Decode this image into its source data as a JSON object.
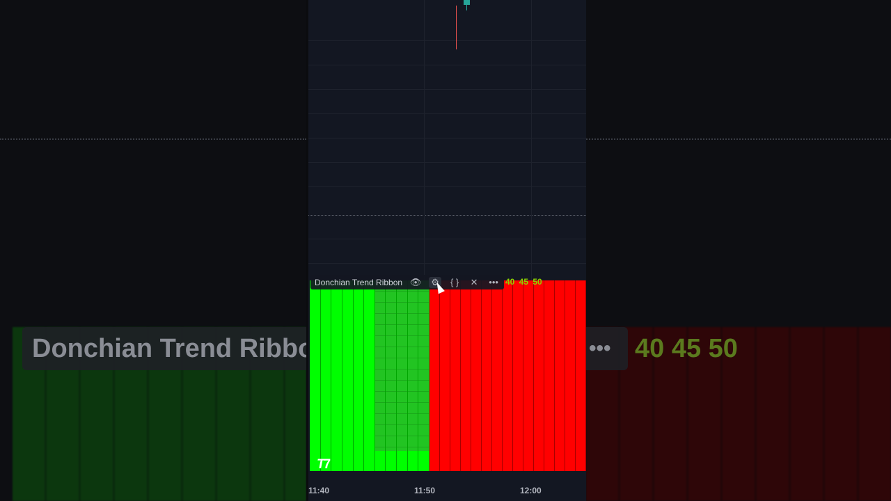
{
  "indicator": {
    "title": "Donchian Trend Ribbon",
    "icons": [
      "eye-icon",
      "gear-icon",
      "braces-icon",
      "close-icon",
      "more-icon"
    ],
    "values": "40 45 50"
  },
  "time_axis": {
    "ticks": [
      "11:40",
      "11:50",
      "12:00"
    ]
  },
  "logo_text": "TV",
  "ribbon": {
    "bullish_color": "#00ff00",
    "bullish_weak_color": "#22c422",
    "bearish_color": "#ff0000",
    "columns": [
      "up",
      "up",
      "up",
      "up",
      "up",
      "up",
      "up-weak",
      "up-weak",
      "up-weak",
      "up-weak",
      "up-weak",
      "down",
      "down",
      "down",
      "down",
      "down",
      "down",
      "down",
      "down",
      "down",
      "down",
      "down",
      "down",
      "down",
      "down",
      "down"
    ]
  },
  "candle": {
    "up_color": "#26a69a",
    "down_color": "#ef5350"
  }
}
